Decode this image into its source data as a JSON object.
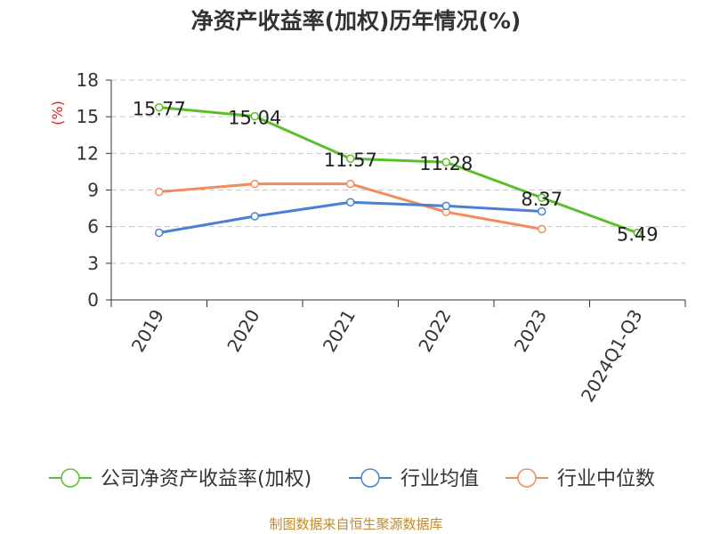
{
  "title": "净资产收益率(加权)历年情况(%)",
  "source": "制图数据来自恒生聚源数据库",
  "chart_data": {
    "type": "line",
    "title": "净资产收益率(加权)历年情况(%)",
    "ylabel": "(%)",
    "categories": [
      "2019",
      "2020",
      "2021",
      "2022",
      "2023",
      "2024Q1-Q3"
    ],
    "ylim": [
      0,
      18
    ],
    "yticks": [
      "0",
      "3",
      "6",
      "9",
      "12",
      "15",
      "18"
    ],
    "grid": true,
    "legend_position": "bottom",
    "series": [
      {
        "name": "公司净资产收益率(加权)",
        "color": "#5cbf2a",
        "values": [
          15.77,
          15.04,
          11.57,
          11.28,
          8.37,
          5.49
        ],
        "labels": [
          "15.77",
          "15.04",
          "11.57",
          "11.28",
          "8.37",
          "5.49"
        ]
      },
      {
        "name": "行业均值",
        "color": "#4a7fd6",
        "values": [
          5.5,
          6.85,
          8.0,
          7.7,
          7.25,
          null
        ]
      },
      {
        "name": "行业中位数",
        "color": "#f28c5a",
        "values": [
          8.85,
          9.5,
          9.5,
          7.2,
          5.8,
          null
        ]
      }
    ]
  }
}
